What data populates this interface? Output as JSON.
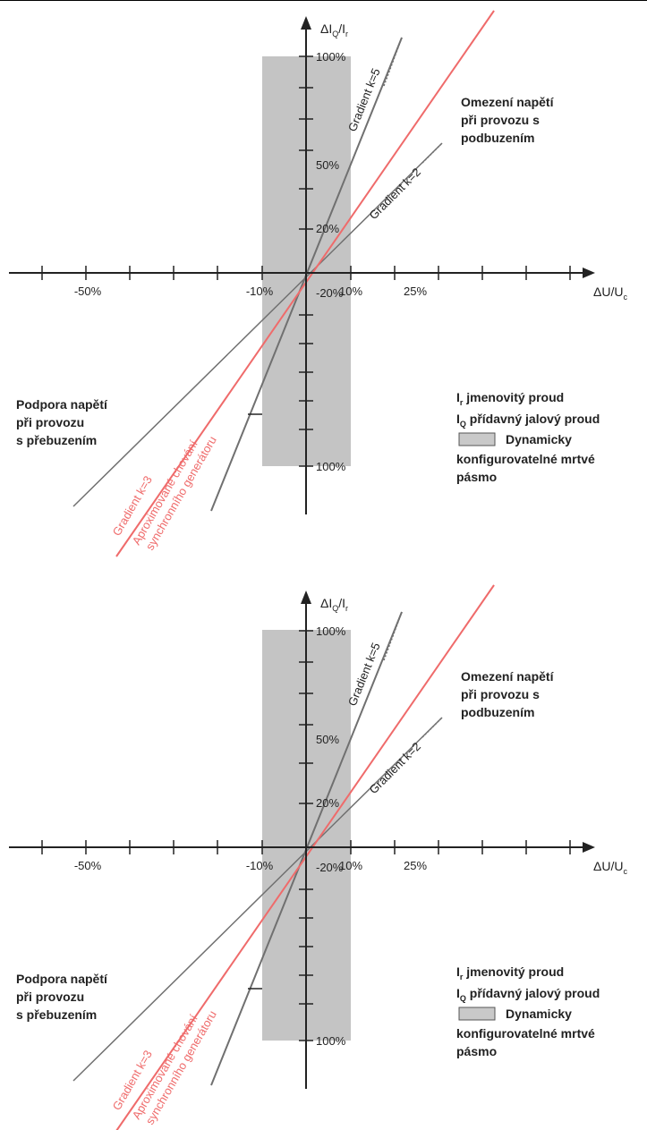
{
  "colors": {
    "deadband": "#c4c4c4",
    "axis": "#222222",
    "gradient_grey": "#707070",
    "gradient_red": "#ef6b6b",
    "text": "#222222"
  },
  "diagrams": [
    {
      "y_axis_label": "ΔI",
      "y_axis_label_sub": "Q",
      "y_axis_label_tail": "/I",
      "y_axis_label_tail_sub": "r",
      "x_axis_label": "ΔU/U",
      "x_axis_label_sub": "c",
      "x_ticks": {
        "m50": "-50%",
        "m10": "-10%",
        "p10": "10%",
        "p25": "25%"
      },
      "y_ticks": {
        "p100": "100%",
        "p50": "50%",
        "p20": "20%",
        "m20": "-20%",
        "m100": "100%"
      },
      "gradient_k5": "Gradient k=5",
      "gradient_k2": "Gradient k=2",
      "gradient_k3": "Gradient k=3",
      "approx_line1": "Aproximované chování",
      "approx_line2": "synchronního generátoru",
      "under_excited": [
        "Omezení napětí",
        "při provozu s",
        "podbuzením"
      ],
      "over_excited": [
        "Podpora napětí",
        "při provozu",
        "s přebuzením"
      ],
      "legend": {
        "ir_sym": "I",
        "ir_sub": "r",
        "ir_text": " jmenovitý proud",
        "iq_sym": "I",
        "iq_sub": "Q",
        "iq_text": " přídavný jalový proud",
        "box_label": "Dynamicky",
        "line2": "konfigurovatelné mrtvé",
        "line3": "pásmo"
      }
    },
    {
      "y_axis_label": "ΔI",
      "y_axis_label_sub": "Q",
      "y_axis_label_tail": "/I",
      "y_axis_label_tail_sub": "r",
      "x_axis_label": "ΔU/U",
      "x_axis_label_sub": "c",
      "x_ticks": {
        "m50": "-50%",
        "m10": "-10%",
        "p10": "10%",
        "p25": "25%"
      },
      "y_ticks": {
        "p100": "100%",
        "p50": "50%",
        "p20": "20%",
        "m20": "-20%",
        "m100": "100%"
      },
      "gradient_k5": "Gradient k=5",
      "gradient_k2": "Gradient k=2",
      "gradient_k3": "Gradient k=3",
      "approx_line1": "Aproximované chování",
      "approx_line2": "synchronního generátoru",
      "under_excited": [
        "Omezení napětí",
        "při provozu s",
        "podbuzením"
      ],
      "over_excited": [
        "Podpora napětí",
        "při provozu",
        "s přebuzením"
      ],
      "legend": {
        "ir_sym": "I",
        "ir_sub": "r",
        "ir_text": " jmenovitý proud",
        "iq_sym": "I",
        "iq_sub": "Q",
        "iq_text": " přídavný jalový proud",
        "box_label": "Dynamicky",
        "line2": "konfigurovatelné mrtvé",
        "line3": "pásmo"
      }
    }
  ]
}
